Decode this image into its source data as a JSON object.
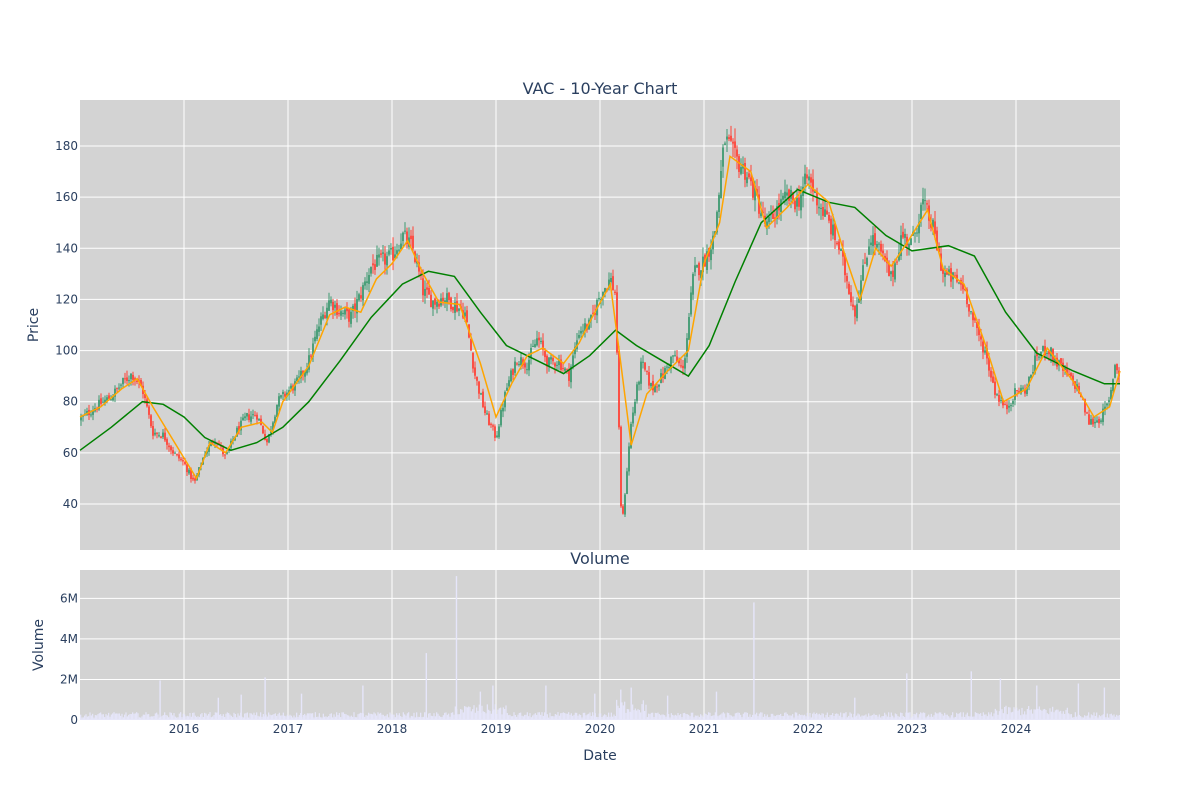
{
  "chart_data": [
    {
      "type": "candlestick",
      "title": "VAC - 10-Year Chart",
      "ylabel": "Price",
      "ylim": [
        22,
        198
      ],
      "yticks": [
        40,
        60,
        80,
        100,
        120,
        140,
        160,
        180
      ],
      "xlim": [
        2015.0,
        2025.0
      ],
      "grid": true,
      "colors": {
        "up": "#3d9970",
        "down": "#ff4136",
        "ma_short": "#ffa500",
        "ma_long": "#008000",
        "plot_bg": "#d3d3d3"
      },
      "ohlc_anchors": [
        {
          "x": 2015.0,
          "close": 73
        },
        {
          "x": 2015.15,
          "close": 78
        },
        {
          "x": 2015.3,
          "close": 82
        },
        {
          "x": 2015.4,
          "close": 87
        },
        {
          "x": 2015.5,
          "close": 91
        },
        {
          "x": 2015.6,
          "close": 85
        },
        {
          "x": 2015.7,
          "close": 68
        },
        {
          "x": 2015.8,
          "close": 67
        },
        {
          "x": 2015.9,
          "close": 60
        },
        {
          "x": 2016.0,
          "close": 56
        },
        {
          "x": 2016.1,
          "close": 48
        },
        {
          "x": 2016.2,
          "close": 60
        },
        {
          "x": 2016.3,
          "close": 66
        },
        {
          "x": 2016.4,
          "close": 58
        },
        {
          "x": 2016.5,
          "close": 68
        },
        {
          "x": 2016.6,
          "close": 74
        },
        {
          "x": 2016.7,
          "close": 75
        },
        {
          "x": 2016.8,
          "close": 64
        },
        {
          "x": 2016.9,
          "close": 80
        },
        {
          "x": 2017.0,
          "close": 84
        },
        {
          "x": 2017.1,
          "close": 88
        },
        {
          "x": 2017.2,
          "close": 96
        },
        {
          "x": 2017.3,
          "close": 110
        },
        {
          "x": 2017.4,
          "close": 120
        },
        {
          "x": 2017.5,
          "close": 115
        },
        {
          "x": 2017.6,
          "close": 113
        },
        {
          "x": 2017.7,
          "close": 122
        },
        {
          "x": 2017.8,
          "close": 133
        },
        {
          "x": 2017.9,
          "close": 135
        },
        {
          "x": 2018.0,
          "close": 137
        },
        {
          "x": 2018.1,
          "close": 145
        },
        {
          "x": 2018.2,
          "close": 140
        },
        {
          "x": 2018.3,
          "close": 123
        },
        {
          "x": 2018.4,
          "close": 119
        },
        {
          "x": 2018.5,
          "close": 121
        },
        {
          "x": 2018.6,
          "close": 118
        },
        {
          "x": 2018.7,
          "close": 115
        },
        {
          "x": 2018.8,
          "close": 90
        },
        {
          "x": 2018.9,
          "close": 75
        },
        {
          "x": 2019.0,
          "close": 66
        },
        {
          "x": 2019.1,
          "close": 85
        },
        {
          "x": 2019.2,
          "close": 97
        },
        {
          "x": 2019.3,
          "close": 95
        },
        {
          "x": 2019.4,
          "close": 105
        },
        {
          "x": 2019.5,
          "close": 95
        },
        {
          "x": 2019.6,
          "close": 96
        },
        {
          "x": 2019.7,
          "close": 90
        },
        {
          "x": 2019.8,
          "close": 108
        },
        {
          "x": 2019.9,
          "close": 110
        },
        {
          "x": 2020.0,
          "close": 122
        },
        {
          "x": 2020.1,
          "close": 128
        },
        {
          "x": 2020.15,
          "close": 122
        },
        {
          "x": 2020.2,
          "close": 40
        },
        {
          "x": 2020.22,
          "close": 35
        },
        {
          "x": 2020.3,
          "close": 72
        },
        {
          "x": 2020.4,
          "close": 95
        },
        {
          "x": 2020.5,
          "close": 85
        },
        {
          "x": 2020.6,
          "close": 90
        },
        {
          "x": 2020.7,
          "close": 98
        },
        {
          "x": 2020.8,
          "close": 92
        },
        {
          "x": 2020.9,
          "close": 130
        },
        {
          "x": 2021.0,
          "close": 135
        },
        {
          "x": 2021.1,
          "close": 145
        },
        {
          "x": 2021.2,
          "close": 183
        },
        {
          "x": 2021.3,
          "close": 175
        },
        {
          "x": 2021.4,
          "close": 170
        },
        {
          "x": 2021.5,
          "close": 160
        },
        {
          "x": 2021.6,
          "close": 148
        },
        {
          "x": 2021.7,
          "close": 155
        },
        {
          "x": 2021.8,
          "close": 160
        },
        {
          "x": 2021.9,
          "close": 158
        },
        {
          "x": 2022.0,
          "close": 168
        },
        {
          "x": 2022.1,
          "close": 158
        },
        {
          "x": 2022.2,
          "close": 150
        },
        {
          "x": 2022.3,
          "close": 140
        },
        {
          "x": 2022.45,
          "close": 115
        },
        {
          "x": 2022.6,
          "close": 145
        },
        {
          "x": 2022.7,
          "close": 138
        },
        {
          "x": 2022.8,
          "close": 128
        },
        {
          "x": 2022.9,
          "close": 145
        },
        {
          "x": 2023.0,
          "close": 142
        },
        {
          "x": 2023.1,
          "close": 158
        },
        {
          "x": 2023.2,
          "close": 148
        },
        {
          "x": 2023.3,
          "close": 130
        },
        {
          "x": 2023.4,
          "close": 128
        },
        {
          "x": 2023.5,
          "close": 125
        },
        {
          "x": 2023.6,
          "close": 110
        },
        {
          "x": 2023.7,
          "close": 100
        },
        {
          "x": 2023.8,
          "close": 84
        },
        {
          "x": 2023.9,
          "close": 77
        },
        {
          "x": 2024.0,
          "close": 84
        },
        {
          "x": 2024.1,
          "close": 85
        },
        {
          "x": 2024.2,
          "close": 98
        },
        {
          "x": 2024.3,
          "close": 101
        },
        {
          "x": 2024.4,
          "close": 95
        },
        {
          "x": 2024.5,
          "close": 90
        },
        {
          "x": 2024.6,
          "close": 85
        },
        {
          "x": 2024.7,
          "close": 72
        },
        {
          "x": 2024.8,
          "close": 73
        },
        {
          "x": 2024.9,
          "close": 80
        },
        {
          "x": 2024.95,
          "close": 95
        },
        {
          "x": 2025.0,
          "close": 90
        }
      ],
      "series": [
        {
          "values_ref": "ma_short",
          "points": [
            {
              "x": 2015.0,
              "y": 74
            },
            {
              "x": 2015.2,
              "y": 78
            },
            {
              "x": 2015.4,
              "y": 85
            },
            {
              "x": 2015.55,
              "y": 89
            },
            {
              "x": 2015.7,
              "y": 78
            },
            {
              "x": 2015.85,
              "y": 68
            },
            {
              "x": 2016.0,
              "y": 58
            },
            {
              "x": 2016.12,
              "y": 50
            },
            {
              "x": 2016.25,
              "y": 64
            },
            {
              "x": 2016.4,
              "y": 60
            },
            {
              "x": 2016.55,
              "y": 70
            },
            {
              "x": 2016.75,
              "y": 72
            },
            {
              "x": 2016.85,
              "y": 68
            },
            {
              "x": 2016.95,
              "y": 80
            },
            {
              "x": 2017.2,
              "y": 94
            },
            {
              "x": 2017.4,
              "y": 114
            },
            {
              "x": 2017.55,
              "y": 117
            },
            {
              "x": 2017.7,
              "y": 115
            },
            {
              "x": 2017.85,
              "y": 128
            },
            {
              "x": 2018.0,
              "y": 134
            },
            {
              "x": 2018.15,
              "y": 143
            },
            {
              "x": 2018.3,
              "y": 130
            },
            {
              "x": 2018.45,
              "y": 119
            },
            {
              "x": 2018.65,
              "y": 118
            },
            {
              "x": 2018.85,
              "y": 95
            },
            {
              "x": 2019.0,
              "y": 74
            },
            {
              "x": 2019.15,
              "y": 87
            },
            {
              "x": 2019.3,
              "y": 98
            },
            {
              "x": 2019.45,
              "y": 101
            },
            {
              "x": 2019.65,
              "y": 95
            },
            {
              "x": 2019.8,
              "y": 103
            },
            {
              "x": 2019.95,
              "y": 115
            },
            {
              "x": 2020.1,
              "y": 126
            },
            {
              "x": 2020.2,
              "y": 95
            },
            {
              "x": 2020.3,
              "y": 63
            },
            {
              "x": 2020.45,
              "y": 83
            },
            {
              "x": 2020.65,
              "y": 92
            },
            {
              "x": 2020.85,
              "y": 100
            },
            {
              "x": 2021.0,
              "y": 134
            },
            {
              "x": 2021.15,
              "y": 150
            },
            {
              "x": 2021.25,
              "y": 176
            },
            {
              "x": 2021.45,
              "y": 170
            },
            {
              "x": 2021.6,
              "y": 148
            },
            {
              "x": 2021.8,
              "y": 156
            },
            {
              "x": 2022.0,
              "y": 165
            },
            {
              "x": 2022.2,
              "y": 158
            },
            {
              "x": 2022.35,
              "y": 138
            },
            {
              "x": 2022.5,
              "y": 120
            },
            {
              "x": 2022.65,
              "y": 140
            },
            {
              "x": 2022.8,
              "y": 133
            },
            {
              "x": 2022.95,
              "y": 142
            },
            {
              "x": 2023.15,
              "y": 155
            },
            {
              "x": 2023.3,
              "y": 132
            },
            {
              "x": 2023.5,
              "y": 126
            },
            {
              "x": 2023.7,
              "y": 103
            },
            {
              "x": 2023.88,
              "y": 80
            },
            {
              "x": 2024.1,
              "y": 85
            },
            {
              "x": 2024.3,
              "y": 101
            },
            {
              "x": 2024.55,
              "y": 88
            },
            {
              "x": 2024.75,
              "y": 74
            },
            {
              "x": 2024.9,
              "y": 78
            },
            {
              "x": 2025.0,
              "y": 92
            }
          ]
        },
        {
          "values_ref": "ma_long",
          "points": [
            {
              "x": 2015.0,
              "y": 61
            },
            {
              "x": 2015.3,
              "y": 70
            },
            {
              "x": 2015.6,
              "y": 80
            },
            {
              "x": 2015.8,
              "y": 79
            },
            {
              "x": 2016.0,
              "y": 74
            },
            {
              "x": 2016.2,
              "y": 66
            },
            {
              "x": 2016.45,
              "y": 61
            },
            {
              "x": 2016.7,
              "y": 64
            },
            {
              "x": 2016.95,
              "y": 70
            },
            {
              "x": 2017.2,
              "y": 80
            },
            {
              "x": 2017.5,
              "y": 96
            },
            {
              "x": 2017.8,
              "y": 113
            },
            {
              "x": 2018.1,
              "y": 126
            },
            {
              "x": 2018.35,
              "y": 131
            },
            {
              "x": 2018.6,
              "y": 129
            },
            {
              "x": 2018.85,
              "y": 115
            },
            {
              "x": 2019.1,
              "y": 102
            },
            {
              "x": 2019.4,
              "y": 96
            },
            {
              "x": 2019.65,
              "y": 91
            },
            {
              "x": 2019.9,
              "y": 98
            },
            {
              "x": 2020.15,
              "y": 108
            },
            {
              "x": 2020.35,
              "y": 102
            },
            {
              "x": 2020.6,
              "y": 96
            },
            {
              "x": 2020.85,
              "y": 90
            },
            {
              "x": 2021.05,
              "y": 102
            },
            {
              "x": 2021.3,
              "y": 127
            },
            {
              "x": 2021.55,
              "y": 150
            },
            {
              "x": 2021.9,
              "y": 163
            },
            {
              "x": 2022.2,
              "y": 158
            },
            {
              "x": 2022.45,
              "y": 156
            },
            {
              "x": 2022.75,
              "y": 145
            },
            {
              "x": 2023.0,
              "y": 139
            },
            {
              "x": 2023.35,
              "y": 141
            },
            {
              "x": 2023.6,
              "y": 137
            },
            {
              "x": 2023.9,
              "y": 115
            },
            {
              "x": 2024.2,
              "y": 99
            },
            {
              "x": 2024.55,
              "y": 92
            },
            {
              "x": 2024.85,
              "y": 87
            },
            {
              "x": 2025.0,
              "y": 87
            }
          ]
        }
      ]
    },
    {
      "type": "bar",
      "title": "Volume",
      "xlabel": "Date",
      "ylabel": "Volume",
      "ylim": [
        0,
        7400000
      ],
      "yticks": [
        {
          "v": 0,
          "label": "0"
        },
        {
          "v": 2000000,
          "label": "2M"
        },
        {
          "v": 4000000,
          "label": "4M"
        },
        {
          "v": 6000000,
          "label": "6M"
        }
      ],
      "xticks": [
        {
          "x": 2016.0,
          "label": "2016"
        },
        {
          "x": 2017.0,
          "label": "2017"
        },
        {
          "x": 2018.0,
          "label": "2018"
        },
        {
          "x": 2019.0,
          "label": "2019"
        },
        {
          "x": 2020.0,
          "label": "2020"
        },
        {
          "x": 2021.0,
          "label": "2021"
        },
        {
          "x": 2022.0,
          "label": "2022"
        },
        {
          "x": 2023.0,
          "label": "2023"
        },
        {
          "x": 2024.0,
          "label": "2024"
        }
      ],
      "colors": {
        "bar": "#e6e6fa"
      },
      "baseline_volume": 300000,
      "spikes": [
        {
          "x": 2015.77,
          "v": 1950000
        },
        {
          "x": 2016.33,
          "v": 1100000
        },
        {
          "x": 2016.55,
          "v": 1250000
        },
        {
          "x": 2016.78,
          "v": 2100000
        },
        {
          "x": 2017.13,
          "v": 1300000
        },
        {
          "x": 2017.72,
          "v": 1700000
        },
        {
          "x": 2018.33,
          "v": 3300000
        },
        {
          "x": 2018.62,
          "v": 7100000
        },
        {
          "x": 2018.85,
          "v": 1400000
        },
        {
          "x": 2018.97,
          "v": 1700000
        },
        {
          "x": 2019.48,
          "v": 1700000
        },
        {
          "x": 2019.95,
          "v": 1300000
        },
        {
          "x": 2020.2,
          "v": 1500000
        },
        {
          "x": 2020.3,
          "v": 1600000
        },
        {
          "x": 2020.65,
          "v": 1200000
        },
        {
          "x": 2021.12,
          "v": 1400000
        },
        {
          "x": 2021.48,
          "v": 5800000
        },
        {
          "x": 2022.45,
          "v": 1100000
        },
        {
          "x": 2022.95,
          "v": 2300000
        },
        {
          "x": 2023.57,
          "v": 2400000
        },
        {
          "x": 2023.85,
          "v": 2050000
        },
        {
          "x": 2024.2,
          "v": 1700000
        },
        {
          "x": 2024.6,
          "v": 1800000
        },
        {
          "x": 2024.85,
          "v": 1600000
        }
      ]
    }
  ]
}
